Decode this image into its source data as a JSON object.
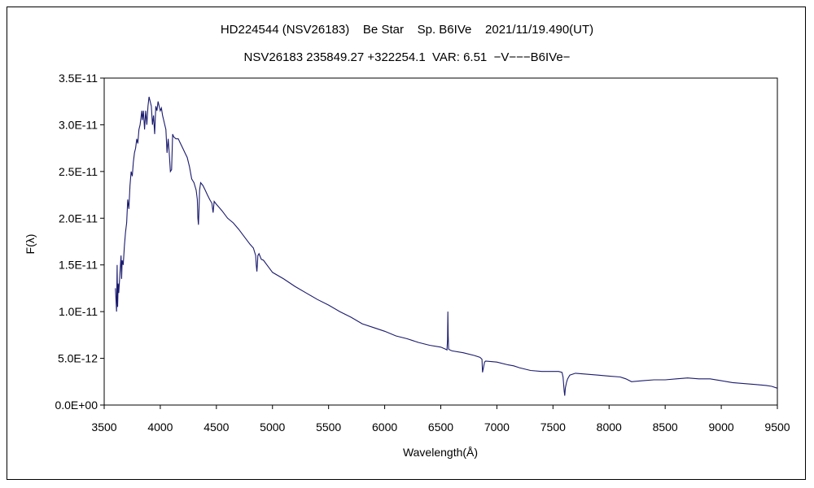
{
  "chart_data": {
    "type": "line",
    "title": "HD224544 (NSV26183)    Be Star    Sp. B6IVe    2021/11/19.490(UT)",
    "subtitle": "NSV26183 235849.27 +322254.1  VAR: 6.51  −V−−−B6IVe−",
    "xlabel": "Wavelength(Å)",
    "ylabel": "F(λ)",
    "xlim": [
      3500,
      9500
    ],
    "ylim": [
      0,
      3.5e-11
    ],
    "x_ticks": [
      3500,
      4000,
      4500,
      5000,
      5500,
      6000,
      6500,
      7000,
      7500,
      8000,
      8500,
      9000,
      9500
    ],
    "x_tick_labels": [
      "3500",
      "4000",
      "4500",
      "5000",
      "5500",
      "6000",
      "6500",
      "7000",
      "7500",
      "8000",
      "8500",
      "9000",
      "9500"
    ],
    "y_ticks": [
      0,
      5e-12,
      1e-11,
      1.5e-11,
      2e-11,
      2.5e-11,
      3e-11,
      3.5e-11
    ],
    "y_tick_labels": [
      "0.0E+00",
      "5.0E-12",
      "1.0E-11",
      "1.5E-11",
      "2.0E-11",
      "2.5E-11",
      "3.0E-11",
      "3.5E-11"
    ],
    "grid": false,
    "legend": "none",
    "color": "#1a1a6e",
    "series": [
      {
        "x": [
          3600,
          3610,
          3615,
          3620,
          3625,
          3630,
          3640,
          3650,
          3655,
          3660,
          3670,
          3680,
          3690,
          3700,
          3710,
          3720,
          3730,
          3740,
          3750,
          3760,
          3770,
          3780,
          3790,
          3800,
          3810,
          3820,
          3830,
          3835,
          3840,
          3850,
          3860,
          3870,
          3880,
          3890,
          3900,
          3910,
          3920,
          3930,
          3940,
          3950,
          3960,
          3970,
          3980,
          3990,
          4000,
          4010,
          4020,
          4030,
          4040,
          4050,
          4060,
          4070,
          4080,
          4090,
          4101,
          4110,
          4120,
          4140,
          4160,
          4180,
          4200,
          4220,
          4240,
          4260,
          4280,
          4300,
          4320,
          4330,
          4335,
          4340,
          4345,
          4350,
          4360,
          4380,
          4400,
          4420,
          4440,
          4460,
          4471,
          4480,
          4500,
          4550,
          4600,
          4650,
          4700,
          4750,
          4800,
          4830,
          4850,
          4855,
          4861,
          4866,
          4870,
          4880,
          4900,
          4920,
          4950,
          5000,
          5100,
          5200,
          5300,
          5400,
          5500,
          5600,
          5700,
          5800,
          5900,
          6000,
          6100,
          6200,
          6300,
          6400,
          6500,
          6540,
          6555,
          6560,
          6563,
          6566,
          6570,
          6580,
          6600,
          6700,
          6800,
          6850,
          6867,
          6872,
          6890,
          6900,
          7000,
          7100,
          7150,
          7200,
          7300,
          7400,
          7500,
          7550,
          7580,
          7590,
          7600,
          7605,
          7610,
          7620,
          7630,
          7650,
          7700,
          7800,
          7900,
          8000,
          8100,
          8150,
          8200,
          8300,
          8400,
          8500,
          8600,
          8700,
          8800,
          8900,
          9000,
          9100,
          9200,
          9300,
          9400,
          9450,
          9500
        ],
        "y": [
          1.25e-11,
          1e-11,
          1.5e-11,
          1.05e-11,
          1.3e-11,
          1.2e-11,
          1.4e-11,
          1.6e-11,
          1.35e-11,
          1.55e-11,
          1.5e-11,
          1.7e-11,
          1.85e-11,
          1.95e-11,
          2.2e-11,
          2.1e-11,
          2.35e-11,
          2.5e-11,
          2.45e-11,
          2.6e-11,
          2.7e-11,
          2.75e-11,
          2.85e-11,
          2.8e-11,
          2.95e-11,
          3e-11,
          3.1e-11,
          3.15e-11,
          3.05e-11,
          3.15e-11,
          2.95e-11,
          3.15e-11,
          3e-11,
          3.2e-11,
          3.3e-11,
          3.25e-11,
          3.2e-11,
          3e-11,
          3.1e-11,
          2.9e-11,
          3.2e-11,
          3.15e-11,
          3.25e-11,
          3.2e-11,
          3.15e-11,
          3.18e-11,
          3.1e-11,
          3.05e-11,
          3e-11,
          2.95e-11,
          2.7e-11,
          2.85e-11,
          2.7e-11,
          2.5e-11,
          2.52e-11,
          2.9e-11,
          2.87e-11,
          2.85e-11,
          2.85e-11,
          2.8e-11,
          2.75e-11,
          2.7e-11,
          2.65e-11,
          2.55e-11,
          2.42e-11,
          2.38e-11,
          2.3e-11,
          2.2e-11,
          2e-11,
          1.93e-11,
          2.1e-11,
          2.3e-11,
          2.38e-11,
          2.35e-11,
          2.3e-11,
          2.25e-11,
          2.2e-11,
          2.16e-11,
          2.06e-11,
          2.18e-11,
          2.15e-11,
          2.08e-11,
          2e-11,
          1.95e-11,
          1.88e-11,
          1.8e-11,
          1.72e-11,
          1.68e-11,
          1.6e-11,
          1.5e-11,
          1.43e-11,
          1.52e-11,
          1.6e-11,
          1.62e-11,
          1.56e-11,
          1.55e-11,
          1.5e-11,
          1.42e-11,
          1.35e-11,
          1.27e-11,
          1.2e-11,
          1.13e-11,
          1.07e-11,
          1e-11,
          9.4e-12,
          8.7e-12,
          8.3e-12,
          7.9e-12,
          7.4e-12,
          7.1e-12,
          6.7e-12,
          6.4e-12,
          6.2e-12,
          6e-12,
          5.9e-12,
          7e-12,
          1e-11,
          7.5e-12,
          6e-12,
          5.9e-12,
          5.8e-12,
          5.6e-12,
          5.3e-12,
          5.1e-12,
          4.9e-12,
          3.5e-12,
          4.6e-12,
          4.7e-12,
          4.6e-12,
          4.3e-12,
          4.2e-12,
          4e-12,
          3.7e-12,
          3.6e-12,
          3.6e-12,
          3.6e-12,
          3.5e-12,
          3e-12,
          1.5e-12,
          1e-12,
          1.8e-12,
          2.4e-12,
          2.8e-12,
          3.2e-12,
          3.4e-12,
          3.3e-12,
          3.2e-12,
          3.1e-12,
          3e-12,
          2.8e-12,
          2.5e-12,
          2.6e-12,
          2.7e-12,
          2.7e-12,
          2.8e-12,
          2.9e-12,
          2.8e-12,
          2.8e-12,
          2.6e-12,
          2.4e-12,
          2.3e-12,
          2.2e-12,
          2.1e-12,
          2e-12,
          1.8e-12
        ]
      }
    ]
  }
}
